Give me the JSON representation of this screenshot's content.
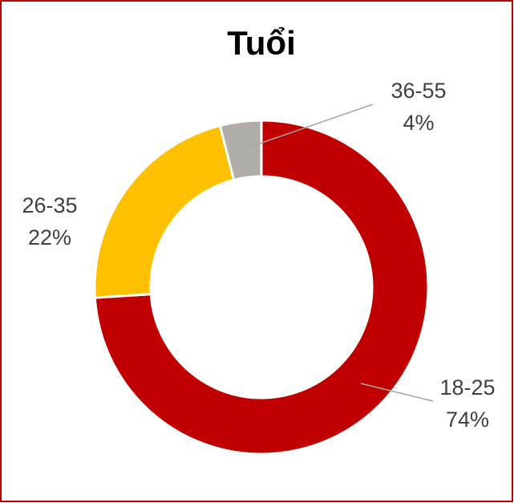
{
  "chart_data": {
    "type": "pie",
    "title": "Tuổi",
    "categories": [
      "18-25",
      "26-35",
      "36-55"
    ],
    "values": [
      74,
      22,
      4
    ],
    "value_labels": [
      "74%",
      "22%",
      "4%"
    ],
    "colors": [
      "#c00000",
      "#ffc000",
      "#b1ada9"
    ],
    "donut": true
  }
}
